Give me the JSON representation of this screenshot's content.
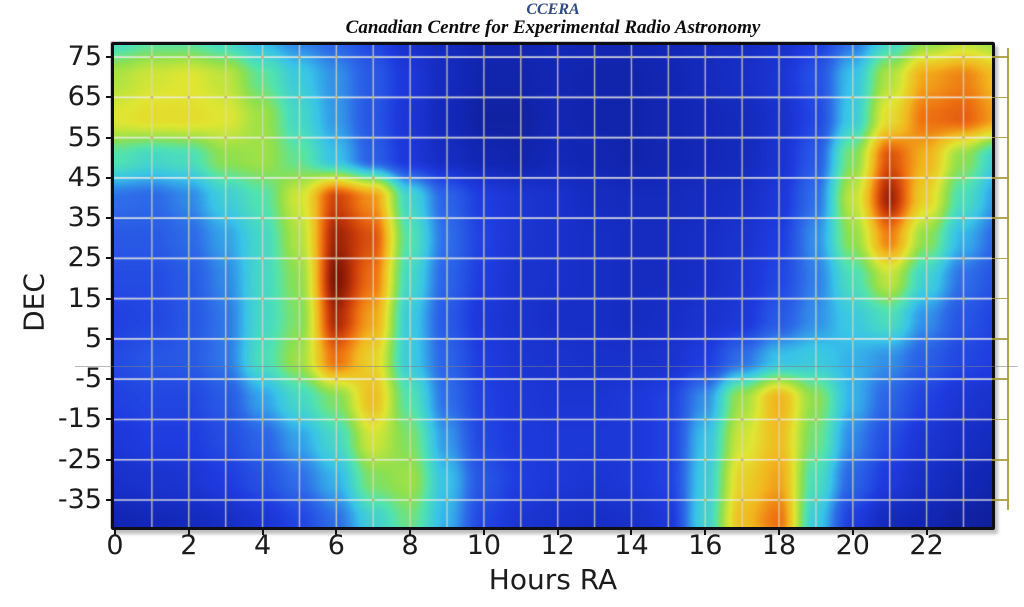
{
  "header": {
    "title": "CCERA",
    "subtitle": "Canadian Centre for Experimental Radio Astronomy"
  },
  "chart_data": {
    "type": "heatmap",
    "title": "CCERA",
    "subtitle": "Canadian Centre for Experimental Radio Astronomy",
    "xlabel": "Hours RA",
    "ylabel": "DEC",
    "x_ticks": [
      0,
      2,
      4,
      6,
      8,
      10,
      12,
      14,
      16,
      18,
      20,
      22
    ],
    "y_ticks": [
      75,
      65,
      55,
      45,
      35,
      25,
      15,
      5,
      -5,
      -15,
      -25,
      -35
    ],
    "x_range": [
      0,
      23.8
    ],
    "y_range": [
      -41.7,
      78
    ],
    "grid": {
      "x_step_hours": 1,
      "y_step_deg": 10,
      "on": true
    },
    "legend": "none",
    "intensity_units": "relative brightness 0-1 (jet colormap)",
    "ra_columns": [
      0,
      1,
      2,
      3,
      4,
      5,
      6,
      7,
      8,
      9,
      10,
      11,
      12,
      13,
      14,
      15,
      16,
      17,
      18,
      19,
      20,
      21,
      22,
      23,
      24
    ],
    "dec_rows": [
      80,
      70,
      60,
      50,
      40,
      30,
      20,
      10,
      0,
      -10,
      -20,
      -30,
      -40,
      -50
    ],
    "values": [
      [
        0.46,
        0.5,
        0.5,
        0.45,
        0.38,
        0.32,
        0.28,
        0.22,
        0.15,
        0.12,
        0.1,
        0.1,
        0.11,
        0.1,
        0.1,
        0.11,
        0.12,
        0.13,
        0.15,
        0.2,
        0.3,
        0.44,
        0.56,
        0.62,
        0.58
      ],
      [
        0.62,
        0.66,
        0.68,
        0.64,
        0.52,
        0.42,
        0.34,
        0.26,
        0.18,
        0.12,
        0.09,
        0.09,
        0.1,
        0.09,
        0.09,
        0.1,
        0.12,
        0.14,
        0.17,
        0.24,
        0.4,
        0.62,
        0.8,
        0.84,
        0.76
      ],
      [
        0.68,
        0.7,
        0.7,
        0.68,
        0.6,
        0.46,
        0.35,
        0.25,
        0.17,
        0.11,
        0.08,
        0.08,
        0.1,
        0.09,
        0.09,
        0.1,
        0.11,
        0.12,
        0.15,
        0.22,
        0.42,
        0.7,
        0.86,
        0.88,
        0.8
      ],
      [
        0.5,
        0.46,
        0.48,
        0.58,
        0.6,
        0.52,
        0.4,
        0.27,
        0.18,
        0.13,
        0.1,
        0.09,
        0.11,
        0.1,
        0.09,
        0.1,
        0.11,
        0.12,
        0.16,
        0.26,
        0.56,
        0.9,
        0.78,
        0.58,
        0.42
      ],
      [
        0.3,
        0.29,
        0.33,
        0.43,
        0.5,
        0.66,
        0.92,
        0.82,
        0.45,
        0.28,
        0.2,
        0.17,
        0.15,
        0.13,
        0.12,
        0.12,
        0.13,
        0.14,
        0.18,
        0.3,
        0.64,
        0.97,
        0.72,
        0.48,
        0.34
      ],
      [
        0.26,
        0.26,
        0.29,
        0.36,
        0.46,
        0.62,
        0.97,
        0.9,
        0.5,
        0.3,
        0.21,
        0.17,
        0.15,
        0.14,
        0.13,
        0.13,
        0.14,
        0.16,
        0.2,
        0.34,
        0.58,
        0.84,
        0.58,
        0.38,
        0.28
      ],
      [
        0.23,
        0.23,
        0.26,
        0.33,
        0.46,
        0.58,
        1.0,
        0.86,
        0.46,
        0.28,
        0.2,
        0.16,
        0.15,
        0.14,
        0.13,
        0.13,
        0.14,
        0.17,
        0.22,
        0.32,
        0.48,
        0.64,
        0.44,
        0.3,
        0.24
      ],
      [
        0.21,
        0.22,
        0.25,
        0.31,
        0.46,
        0.56,
        0.96,
        0.8,
        0.42,
        0.26,
        0.18,
        0.16,
        0.14,
        0.14,
        0.13,
        0.14,
        0.16,
        0.18,
        0.26,
        0.34,
        0.42,
        0.48,
        0.34,
        0.25,
        0.21
      ],
      [
        0.23,
        0.25,
        0.26,
        0.31,
        0.48,
        0.6,
        0.86,
        0.72,
        0.42,
        0.28,
        0.2,
        0.17,
        0.16,
        0.15,
        0.15,
        0.16,
        0.2,
        0.3,
        0.4,
        0.42,
        0.38,
        0.34,
        0.27,
        0.22,
        0.2
      ],
      [
        0.21,
        0.22,
        0.22,
        0.26,
        0.36,
        0.46,
        0.56,
        0.76,
        0.5,
        0.3,
        0.21,
        0.18,
        0.17,
        0.17,
        0.18,
        0.21,
        0.34,
        0.6,
        0.78,
        0.58,
        0.38,
        0.28,
        0.21,
        0.17,
        0.15
      ],
      [
        0.18,
        0.2,
        0.2,
        0.23,
        0.28,
        0.36,
        0.46,
        0.66,
        0.56,
        0.35,
        0.22,
        0.19,
        0.18,
        0.18,
        0.18,
        0.21,
        0.4,
        0.66,
        0.76,
        0.54,
        0.33,
        0.23,
        0.17,
        0.14,
        0.12
      ],
      [
        0.15,
        0.16,
        0.17,
        0.2,
        0.24,
        0.3,
        0.38,
        0.56,
        0.6,
        0.4,
        0.25,
        0.2,
        0.18,
        0.17,
        0.18,
        0.21,
        0.42,
        0.72,
        0.8,
        0.48,
        0.28,
        0.19,
        0.14,
        0.11,
        0.09
      ],
      [
        0.1,
        0.11,
        0.12,
        0.14,
        0.17,
        0.22,
        0.3,
        0.44,
        0.54,
        0.38,
        0.22,
        0.17,
        0.15,
        0.14,
        0.15,
        0.18,
        0.44,
        0.76,
        0.86,
        0.42,
        0.2,
        0.12,
        0.1,
        0.08,
        0.07
      ],
      [
        0.06,
        0.07,
        0.07,
        0.08,
        0.1,
        0.13,
        0.18,
        0.28,
        0.36,
        0.24,
        0.13,
        0.1,
        0.09,
        0.08,
        0.09,
        0.11,
        0.3,
        0.6,
        0.72,
        0.28,
        0.12,
        0.07,
        0.06,
        0.05,
        0.04
      ]
    ],
    "colormap": [
      {
        "t": 0.0,
        "color": "#0a1260"
      },
      {
        "t": 0.1,
        "color": "#1226b4"
      },
      {
        "t": 0.2,
        "color": "#1f3ce0"
      },
      {
        "t": 0.3,
        "color": "#2e6ee8"
      },
      {
        "t": 0.4,
        "color": "#38c3e8"
      },
      {
        "t": 0.5,
        "color": "#52e3b0"
      },
      {
        "t": 0.58,
        "color": "#8ee04e"
      },
      {
        "t": 0.68,
        "color": "#e0e632"
      },
      {
        "t": 0.78,
        "color": "#f2b41e"
      },
      {
        "t": 0.86,
        "color": "#ee7011"
      },
      {
        "t": 0.93,
        "color": "#c93a0a"
      },
      {
        "t": 1.0,
        "color": "#7c1404"
      }
    ],
    "grid_color_h": "rgba(238,238,230,0.85)",
    "grid_color_v": "rgba(222,218,185,0.8)",
    "grid_dot_color": "rgba(188,176,88,0.95)",
    "frame_color": "#0e0e14",
    "background_color": "#ffffff"
  }
}
